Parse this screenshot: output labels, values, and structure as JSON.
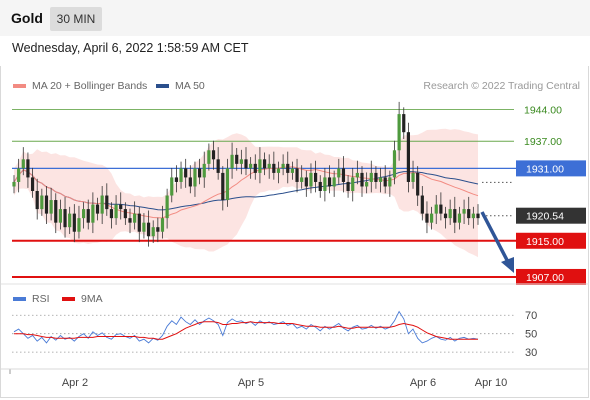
{
  "header": {
    "symbol": "Gold",
    "timeframe": "30 MIN"
  },
  "datetime": "Wednesday, April 6, 2022 1:58:59 AM CET",
  "legend": {
    "ma20": {
      "label": "MA 20 + Bollinger Bands",
      "color": "#f28b82"
    },
    "ma50": {
      "label": "MA 50",
      "color": "#2b4f8c"
    },
    "copyright": "Research © 2022 Trading Central"
  },
  "levels": [
    {
      "value": 1944.0,
      "label": "1944.00",
      "type": "resistance",
      "color": "#6aa84f"
    },
    {
      "value": 1937.0,
      "label": "1937.00",
      "type": "resistance",
      "color": "#6aa84f"
    },
    {
      "value": 1931.0,
      "label": "1931.00",
      "type": "pivot",
      "color": "#3d6fd6"
    },
    {
      "value": 1920.54,
      "label": "1920.54",
      "type": "last-price",
      "color": "#333333"
    },
    {
      "value": 1915.0,
      "label": "1915.00",
      "type": "support",
      "color": "#e01010"
    },
    {
      "value": 1907.0,
      "label": "1907.00",
      "type": "support",
      "color": "#e01010"
    }
  ],
  "rsi_panel": {
    "legend": {
      "rsi": "RSI",
      "ma9": "9MA"
    },
    "ticks": [
      "70",
      "50",
      "30"
    ]
  },
  "x_axis": {
    "ticks": [
      "Apr 2",
      "Apr 5",
      "Apr 6",
      "Apr 10"
    ]
  },
  "chart_data": {
    "type": "candlestick",
    "price_range": [
      1905,
      1947
    ],
    "closes": [
      1928,
      1931,
      1933,
      1929,
      1926,
      1922,
      1925,
      1921,
      1924,
      1919,
      1922,
      1918,
      1921,
      1917,
      1920,
      1922,
      1919,
      1923,
      1921,
      1925,
      1922,
      1920,
      1923,
      1922,
      1920,
      1919,
      1921,
      1917,
      1919,
      1916,
      1918,
      1917,
      1920,
      1925,
      1929,
      1928,
      1931,
      1929,
      1927,
      1931,
      1929,
      1932,
      1935,
      1933,
      1930,
      1924,
      1931,
      1934,
      1932,
      1933,
      1931,
      1932,
      1930,
      1933,
      1931,
      1932,
      1930,
      1931,
      1932,
      1930,
      1931,
      1928,
      1929,
      1927,
      1930,
      1928,
      1926,
      1929,
      1927,
      1929,
      1931,
      1928,
      1926,
      1929,
      1930,
      1927,
      1928,
      1930,
      1928,
      1929,
      1927,
      1929,
      1935,
      1943,
      1939,
      1928,
      1930,
      1925,
      1921,
      1919,
      1921,
      1923,
      1921,
      1920,
      1922,
      1919,
      1921,
      1922,
      1920,
      1921,
      1920
    ],
    "rsi": [
      52,
      55,
      50,
      45,
      48,
      42,
      46,
      40,
      47,
      43,
      48,
      44,
      46,
      42,
      47,
      50,
      45,
      52,
      48,
      51,
      46,
      44,
      49,
      50,
      47,
      45,
      48,
      42,
      44,
      40,
      45,
      43,
      48,
      58,
      64,
      60,
      68,
      63,
      60,
      65,
      60,
      64,
      67,
      64,
      60,
      48,
      62,
      66,
      63,
      64,
      61,
      63,
      59,
      64,
      61,
      63,
      60,
      61,
      63,
      59,
      61,
      56,
      58,
      55,
      60,
      57,
      53,
      58,
      55,
      58,
      61,
      56,
      53,
      57,
      59,
      55,
      56,
      59,
      56,
      58,
      55,
      57,
      64,
      74,
      66,
      50,
      55,
      45,
      40,
      42,
      45,
      47,
      44,
      43,
      46,
      42,
      45,
      46,
      44,
      45,
      44
    ],
    "rsi_ma9": [
      50,
      50,
      50,
      49,
      49,
      48,
      47,
      46,
      46,
      45,
      45,
      45,
      45,
      45,
      46,
      46,
      46,
      46,
      47,
      47,
      47,
      47,
      47,
      47,
      47,
      47,
      47,
      46,
      46,
      45,
      45,
      44,
      44,
      46,
      48,
      50,
      53,
      56,
      58,
      60,
      62,
      63,
      63,
      63,
      62,
      60,
      60,
      61,
      61,
      62,
      62,
      63,
      62,
      62,
      62,
      62,
      62,
      61,
      61,
      61,
      61,
      60,
      59,
      58,
      58,
      58,
      57,
      57,
      57,
      57,
      58,
      57,
      56,
      56,
      57,
      57,
      57,
      57,
      57,
      57,
      57,
      57,
      58,
      60,
      61,
      60,
      59,
      57,
      54,
      51,
      49,
      47,
      46,
      45,
      44,
      44,
      44,
      44,
      44,
      44,
      44
    ],
    "rsi_range": [
      15,
      80
    ]
  }
}
